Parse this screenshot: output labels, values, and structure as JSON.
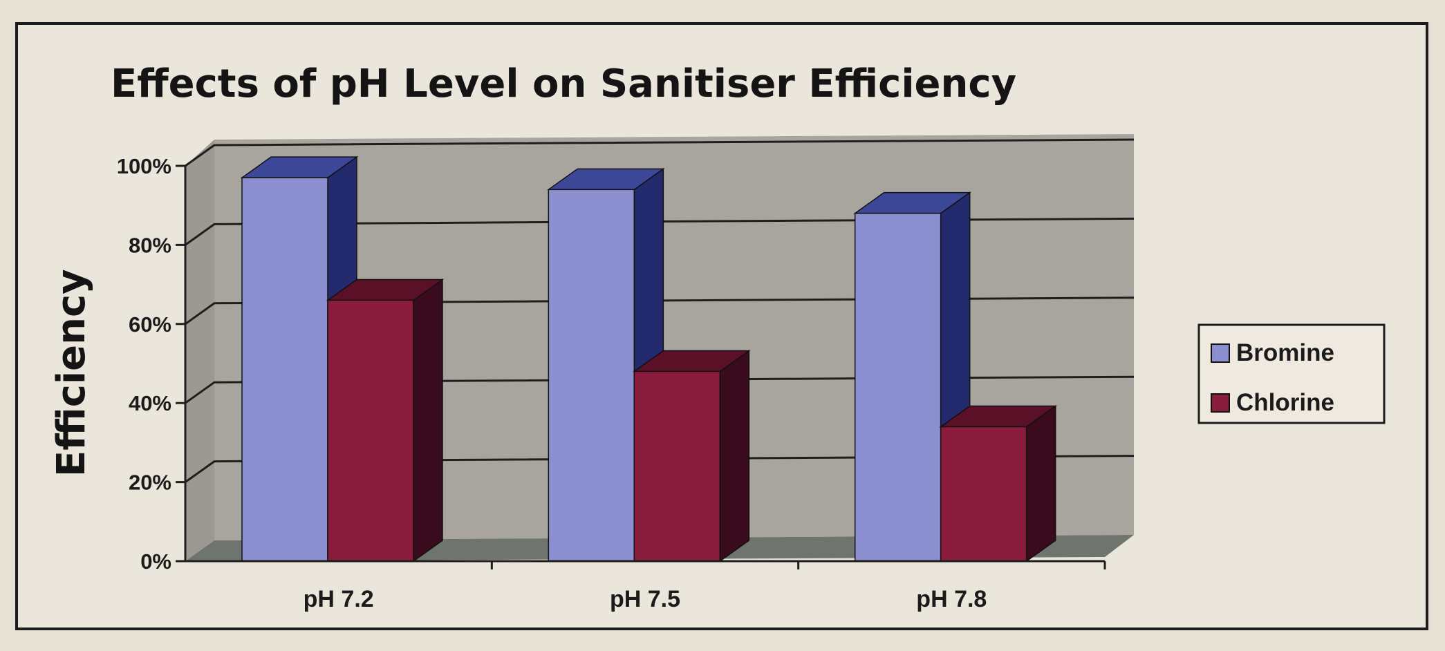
{
  "chart_data": {
    "type": "bar",
    "title": "Effects of pH Level on Sanitiser Efficiency",
    "xlabel": "",
    "ylabel": "Efficiency",
    "categories": [
      "pH 7.2",
      "pH 7.5",
      "pH 7.8"
    ],
    "series": [
      {
        "name": "Bromine",
        "values": [
          97,
          94,
          88
        ],
        "color": "#8b8fcf"
      },
      {
        "name": "Chlorine",
        "values": [
          66,
          48,
          34
        ],
        "color": "#8a1c3e"
      }
    ],
    "ylim": [
      0,
      100
    ],
    "yticks": [
      "0%",
      "20%",
      "40%",
      "60%",
      "80%",
      "100%"
    ],
    "grid": true,
    "style": "3d-clustered-column",
    "legend_position": "right",
    "colors": {
      "wall": "#a7a59e",
      "floor": "#6f746e",
      "gridline": "#1e1e1e"
    }
  }
}
